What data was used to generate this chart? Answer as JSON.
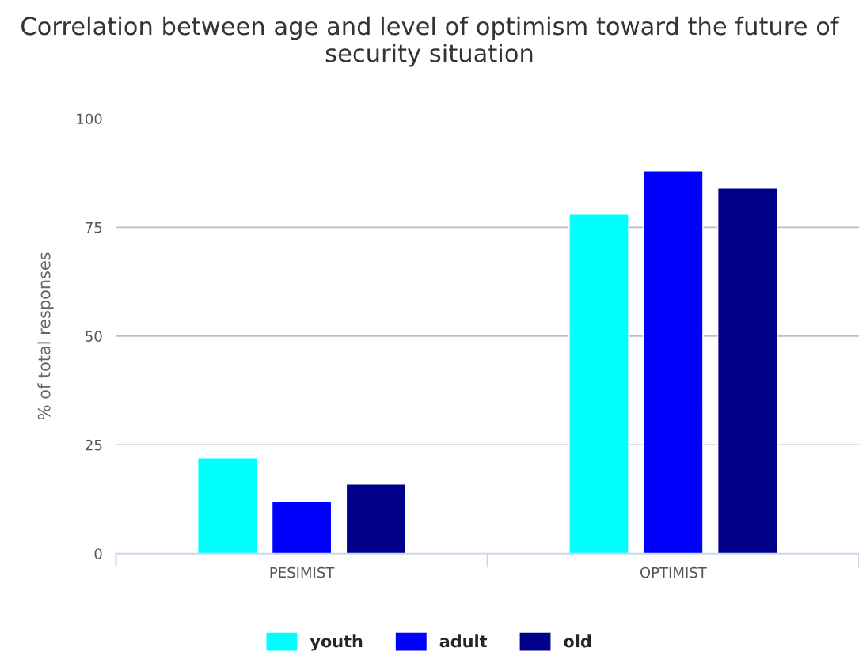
{
  "chart_data": {
    "type": "bar",
    "title": "Correlation between age and level of optimism toward the future of security situation",
    "ylabel": "% of total responses",
    "categories": [
      "PESIMIST",
      "OPTIMIST"
    ],
    "series": [
      {
        "name": "youth",
        "color": "#00ffff",
        "values": [
          22,
          78
        ]
      },
      {
        "name": "adult",
        "color": "#0000ff",
        "values": [
          12,
          88
        ]
      },
      {
        "name": "old",
        "color": "#00008b",
        "values": [
          16,
          84
        ]
      }
    ],
    "ylim": [
      0,
      100
    ],
    "yticks": [
      0,
      25,
      50,
      75,
      100
    ],
    "grid": "y",
    "legend": "bottom"
  }
}
